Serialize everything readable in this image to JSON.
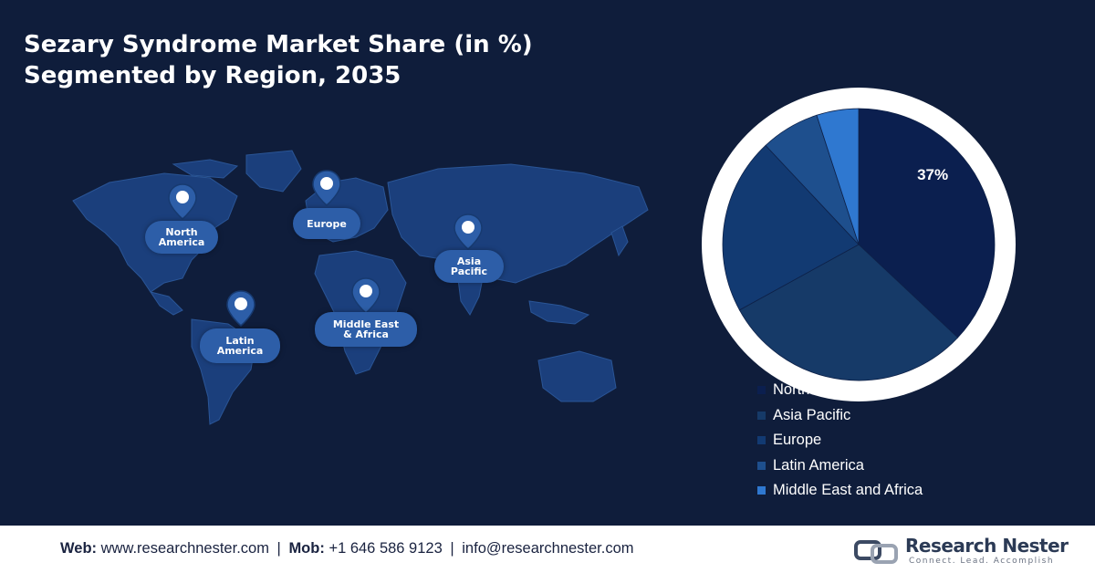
{
  "title": {
    "line1": "Sezary Syndrome Market Share (in %)",
    "line2": "Segmented by Region, 2035"
  },
  "map": {
    "regions": [
      {
        "name": "North America",
        "line1": "North",
        "line2": "America"
      },
      {
        "name": "Europe",
        "line1": "Europe",
        "line2": ""
      },
      {
        "name": "Asia Pacific",
        "line1": "Asia",
        "line2": "Pacific"
      },
      {
        "name": "Latin America",
        "line1": "Latin",
        "line2": "America"
      },
      {
        "name": "Middle East & Africa",
        "line1": "Middle East",
        "line2": "& Africa"
      }
    ]
  },
  "chart_data": {
    "type": "pie",
    "title": "Sezary Syndrome Market Share (in %) Segmented by Region, 2035",
    "series": [
      {
        "name": "North America",
        "value": 37,
        "color": "#0b1f4f"
      },
      {
        "name": "Asia Pacific",
        "value": 30,
        "color": "#163a68"
      },
      {
        "name": "Europe",
        "value": 21,
        "color": "#123a72"
      },
      {
        "name": "Latin America",
        "value": 7,
        "color": "#1e4f8d"
      },
      {
        "name": "Middle East and Africa",
        "value": 5,
        "color": "#2f78d0"
      }
    ],
    "data_labels": [
      "37%"
    ],
    "legend_position": "bottom-right"
  },
  "footer": {
    "web_label": "Web:",
    "web_value": "www.researchnester.com",
    "mob_label": "Mob:",
    "mob_value": "+1 646 586 9123",
    "email_value": "info@researchnester.com"
  },
  "logo": {
    "name": "Research Nester",
    "tagline": "Connect. Lead. Accomplish",
    "icon": "research-nester-logo-icon"
  }
}
